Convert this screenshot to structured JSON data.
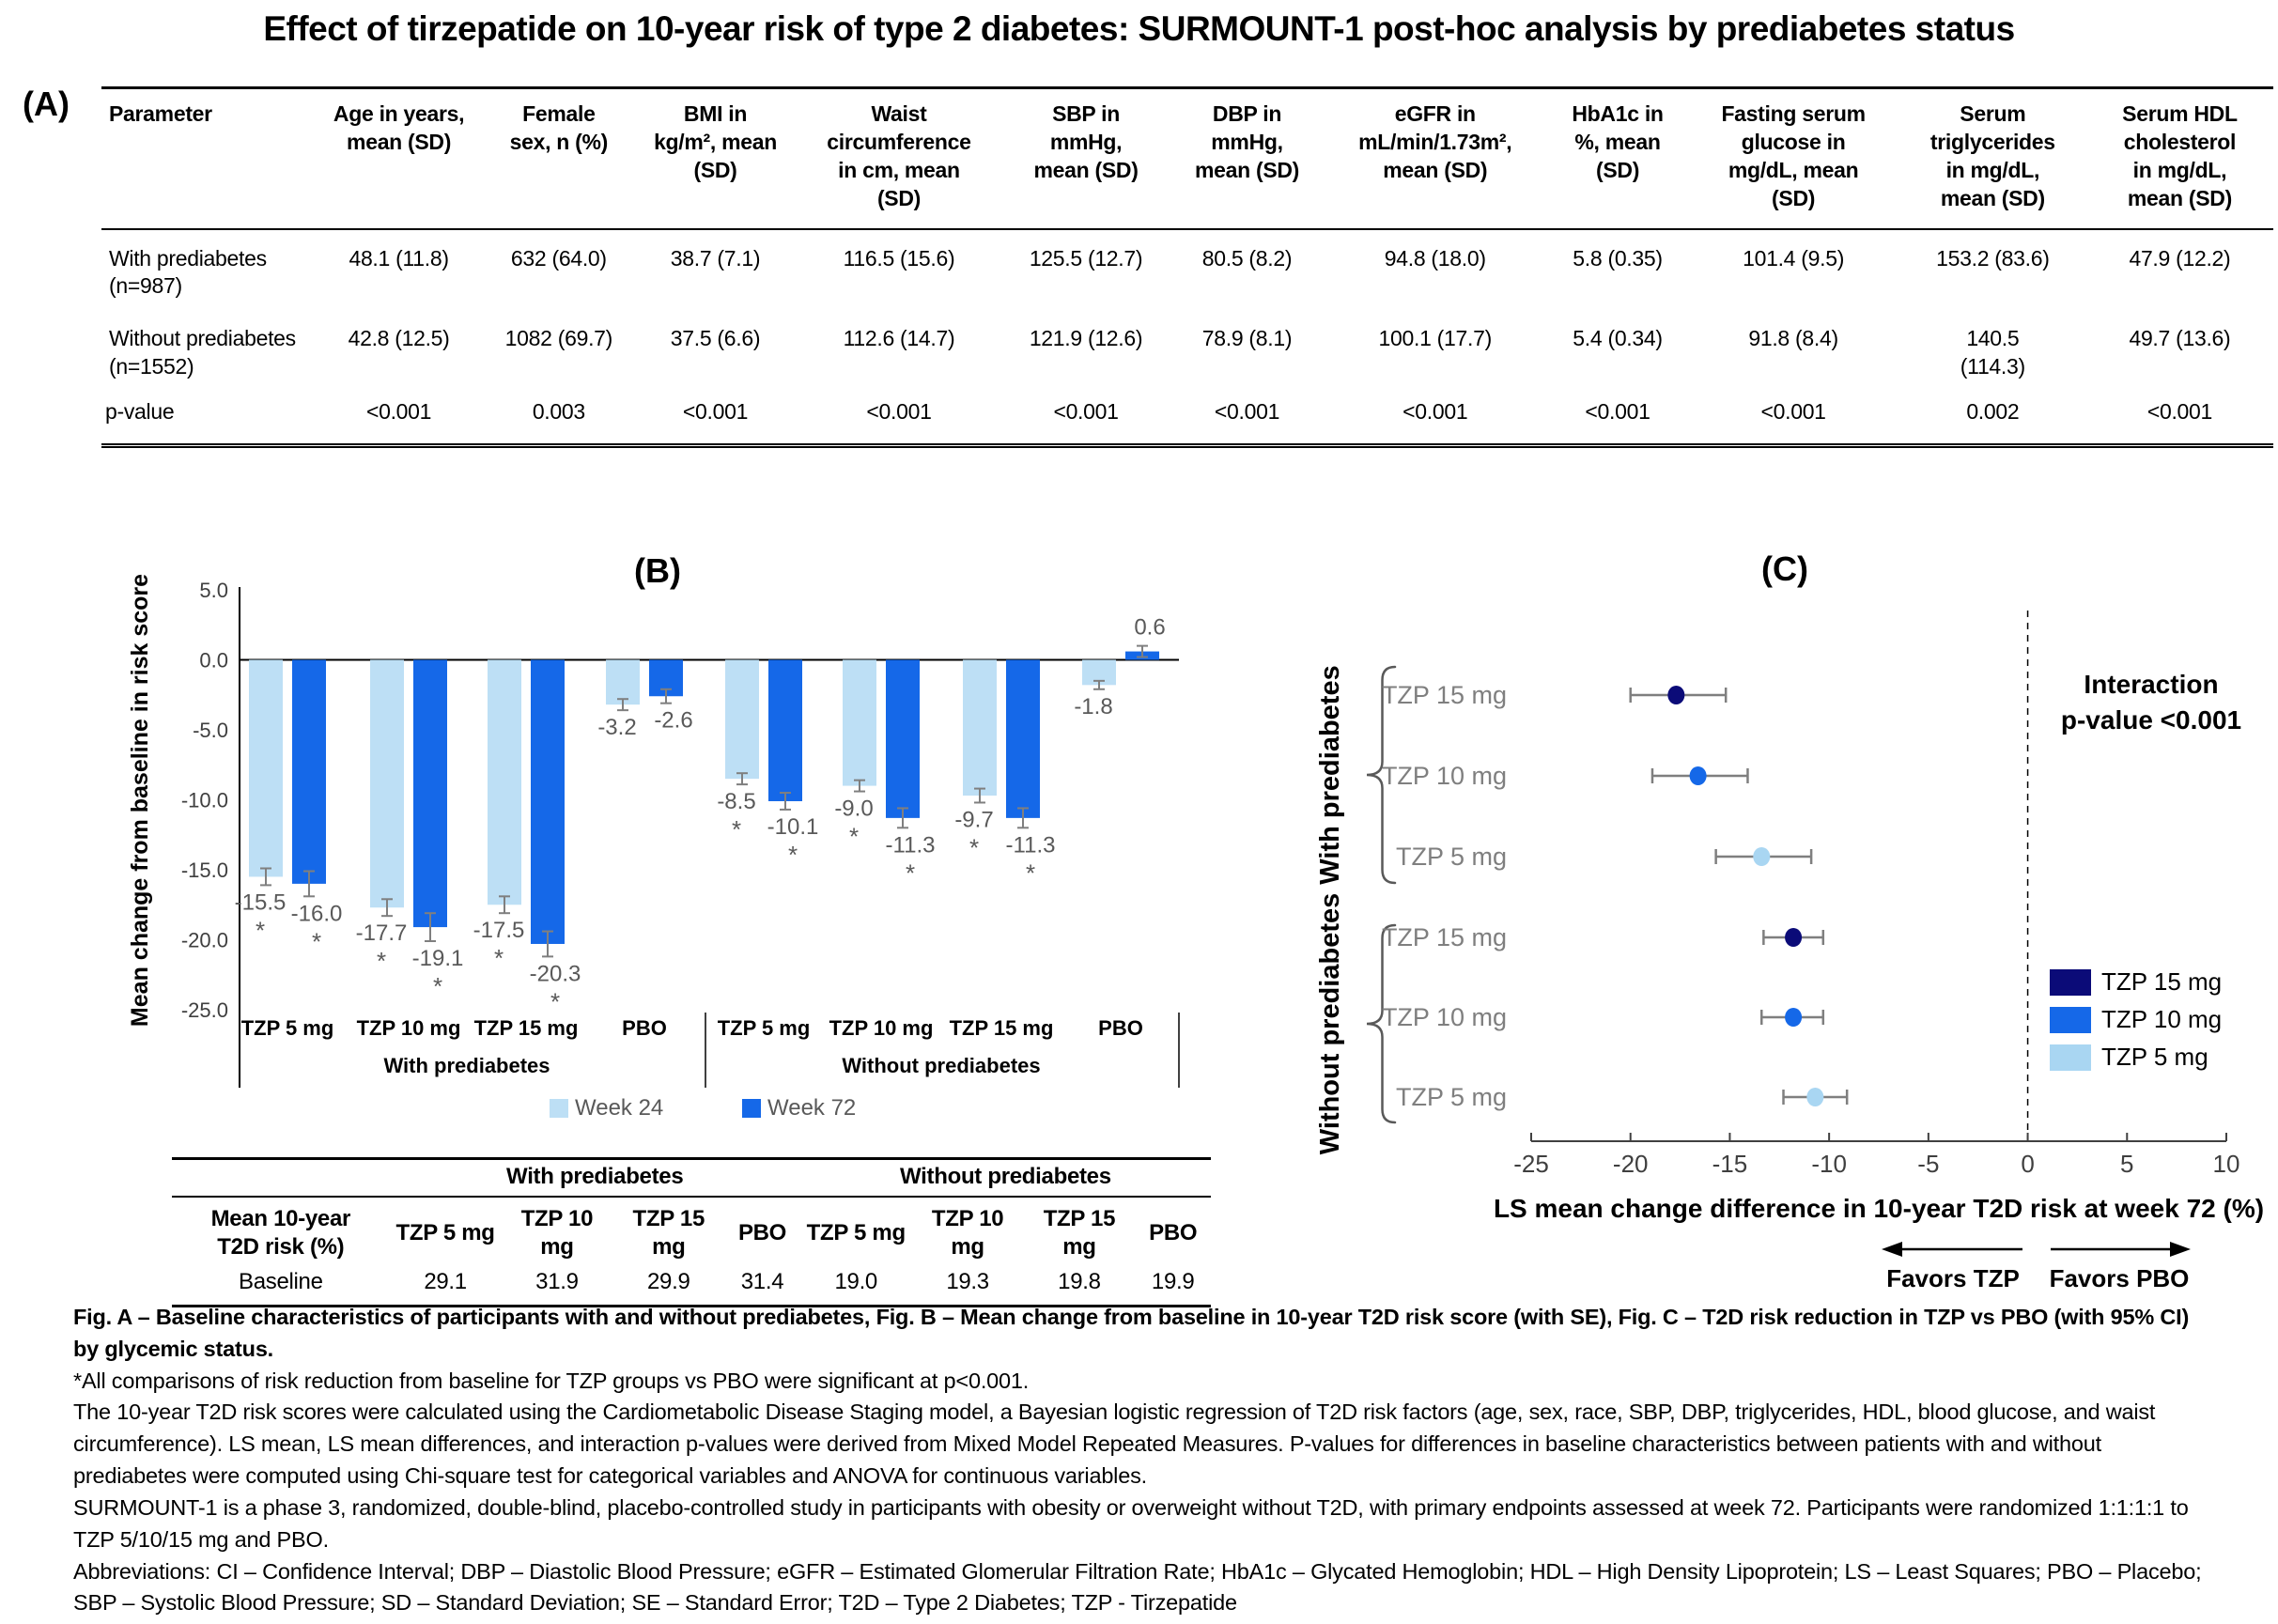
{
  "title": "Effect of tirzepatide on 10-year risk of type 2 diabetes: SURMOUNT-1 post-hoc analysis by prediabetes status",
  "panel_a": {
    "label": "(A)"
  },
  "colors": {
    "week24_light_blue": "#BDDFF5",
    "week72_blue": "#1568E8",
    "tzp15_navy": "#0B0B78",
    "tzp5_dot_light_blue": "#A9D6F2",
    "gray_error": "#7F7F7F",
    "gray_label": "#595959"
  },
  "chart_data": [
    {
      "id": "A",
      "type": "table",
      "columns": [
        "Parameter",
        "Age in years,\nmean (SD)",
        "Female\nsex, n (%)",
        "BMI in\nkg/m², mean\n(SD)",
        "Waist\ncircumference\nin cm, mean\n(SD)",
        "SBP in\nmmHg,\nmean (SD)",
        "DBP in\nmmHg,\nmean (SD)",
        "eGFR in\nmL/min/1.73m²,\nmean (SD)",
        "HbA1c in\n%, mean\n(SD)",
        "Fasting serum\nglucose in\nmg/dL, mean\n(SD)",
        "Serum\ntriglycerides\nin mg/dL,\nmean (SD)",
        "Serum HDL\ncholesterol\nin mg/dL,\nmean (SD)"
      ],
      "rows": [
        [
          "With prediabetes\n(n=987)",
          "48.1 (11.8)",
          "632 (64.0)",
          "38.7 (7.1)",
          "116.5 (15.6)",
          "125.5 (12.7)",
          "80.5 (8.2)",
          "94.8 (18.0)",
          "5.8 (0.35)",
          "101.4 (9.5)",
          "153.2 (83.6)",
          "47.9 (12.2)"
        ],
        [
          "Without prediabetes\n(n=1552)",
          "42.8 (12.5)",
          "1082 (69.7)",
          "37.5 (6.6)",
          "112.6 (14.7)",
          "121.9 (12.6)",
          "78.9 (8.1)",
          "100.1 (17.7)",
          "5.4 (0.34)",
          "91.8 (8.4)",
          "140.5\n(114.3)",
          "49.7 (13.6)"
        ],
        [
          "p-value",
          "<0.001",
          "0.003",
          "<0.001",
          "<0.001",
          "<0.001",
          "<0.001",
          "<0.001",
          "<0.001",
          "<0.001",
          "0.002",
          "<0.001"
        ]
      ]
    },
    {
      "id": "B",
      "type": "bar",
      "title": "(B)",
      "ylabel": "Mean change from baseline in risk score",
      "ylim": [
        -25,
        5
      ],
      "yticks": [
        "5.0",
        "0.0",
        "-5.0",
        "-10.0",
        "-15.0",
        "-20.0",
        "-25.0"
      ],
      "ytick_values": [
        5,
        0,
        -5,
        -10,
        -15,
        -20,
        -25
      ],
      "categories": [
        "TZP 5 mg",
        "TZP 10 mg",
        "TZP 15 mg",
        "PBO",
        "TZP 5 mg",
        "TZP 10 mg",
        "TZP 15 mg",
        "PBO"
      ],
      "sections": [
        "With prediabetes",
        "Without prediabetes"
      ],
      "significant_groups": [
        true,
        true,
        true,
        false,
        true,
        true,
        true,
        false
      ],
      "significance_symbol": "*",
      "series": [
        {
          "name": "Week 24",
          "color": "#BDDFF5",
          "values": [
            -15.5,
            -17.7,
            -17.5,
            -3.2,
            -8.5,
            -9.0,
            -9.7,
            -1.8
          ],
          "se": [
            0.6,
            0.6,
            0.6,
            0.4,
            0.4,
            0.4,
            0.5,
            0.3
          ]
        },
        {
          "name": "Week 72",
          "color": "#1568E8",
          "values": [
            -16.0,
            -19.1,
            -20.3,
            -2.6,
            -10.1,
            -11.3,
            -11.3,
            0.6
          ],
          "se": [
            0.9,
            1.0,
            0.9,
            0.5,
            0.6,
            0.7,
            0.7,
            0.4
          ]
        }
      ],
      "baseline_table": {
        "group_headers": [
          "With prediabetes",
          "Without prediabetes"
        ],
        "row_header": "Mean 10-year\nT2D risk (%)",
        "columns": [
          "TZP 5 mg",
          "TZP 10 mg",
          "TZP 15 mg",
          "PBO",
          "TZP 5 mg",
          "TZP 10 mg",
          "TZP 15 mg",
          "PBO"
        ],
        "row_label": "Baseline",
        "values": [
          "29.1",
          "31.9",
          "29.9",
          "31.4",
          "19.0",
          "19.3",
          "19.8",
          "19.9"
        ]
      }
    },
    {
      "id": "C",
      "type": "scatter",
      "subtype": "forest",
      "title": "(C)",
      "xlabel": "LS mean change difference in 10-year T2D risk at week 72 (%)",
      "xlim": [
        -25,
        10
      ],
      "xticks": [
        -25,
        -20,
        -15,
        -10,
        -5,
        0,
        5,
        10
      ],
      "zero_line": 0,
      "annotation": "Interaction\np-value <0.001",
      "sections": [
        {
          "label": "With prediabetes",
          "rows": [
            {
              "label": "TZP 15 mg",
              "value": -17.7,
              "ci": [
                -20.0,
                -15.2
              ],
              "color": "#0B0B78"
            },
            {
              "label": "TZP 10 mg",
              "value": -16.6,
              "ci": [
                -18.9,
                -14.1
              ],
              "color": "#1568E8"
            },
            {
              "label": "TZP 5 mg",
              "value": -13.4,
              "ci": [
                -15.7,
                -10.9
              ],
              "color": "#A9D6F2"
            }
          ]
        },
        {
          "label": "Without prediabetes",
          "rows": [
            {
              "label": "TZP 15 mg",
              "value": -11.8,
              "ci": [
                -13.3,
                -10.3
              ],
              "color": "#0B0B78"
            },
            {
              "label": "TZP 10 mg",
              "value": -11.8,
              "ci": [
                -13.4,
                -10.3
              ],
              "color": "#1568E8"
            },
            {
              "label": "TZP 5 mg",
              "value": -10.7,
              "ci": [
                -12.3,
                -9.1
              ],
              "color": "#A9D6F2"
            }
          ]
        }
      ],
      "legend": [
        {
          "label": "TZP 15 mg",
          "color": "#0B0B78"
        },
        {
          "label": "TZP 10 mg",
          "color": "#1568E8"
        },
        {
          "label": "TZP 5 mg",
          "color": "#A9D6F2"
        }
      ],
      "favors_left": "Favors TZP",
      "favors_right": "Favors PBO"
    }
  ],
  "footer": {
    "paragraphs": [
      {
        "bold": true,
        "text": "Fig. A – Baseline characteristics of participants with and without prediabetes, Fig. B – Mean change from baseline in 10-year T2D risk score (with SE), Fig. C – T2D risk reduction in TZP vs PBO (with 95% CI) by glycemic status."
      },
      {
        "bold": false,
        "text": "*All comparisons of risk reduction from baseline for TZP groups vs PBO were significant at p<0.001."
      },
      {
        "bold": false,
        "text": "The 10-year T2D risk scores were calculated using the Cardiometabolic Disease Staging model, a Bayesian logistic regression of T2D risk factors (age, sex, race, SBP, DBP, triglycerides, HDL, blood glucose, and waist circumference). LS mean, LS mean differences, and interaction p-values were derived from Mixed Model Repeated Measures. P-values for differences in baseline characteristics between patients with and without prediabetes were computed using Chi-square test for categorical variables and ANOVA for continuous variables."
      },
      {
        "bold": false,
        "text": "SURMOUNT-1 is a phase 3, randomized, double-blind, placebo-controlled study in participants with obesity or overweight without T2D, with primary endpoints assessed at week 72. Participants were randomized 1:1:1:1 to TZP 5/10/15 mg and PBO."
      },
      {
        "bold": false,
        "text": "Abbreviations: CI – Confidence Interval; DBP – Diastolic Blood Pressure; eGFR – Estimated Glomerular Filtration Rate; HbA1c – Glycated Hemoglobin; HDL – High Density Lipoprotein; LS – Least Squares; PBO – Placebo; SBP – Systolic Blood Pressure; SD – Standard Deviation; SE – Standard Error; T2D – Type 2 Diabetes; TZP - Tirzepatide"
      }
    ]
  }
}
